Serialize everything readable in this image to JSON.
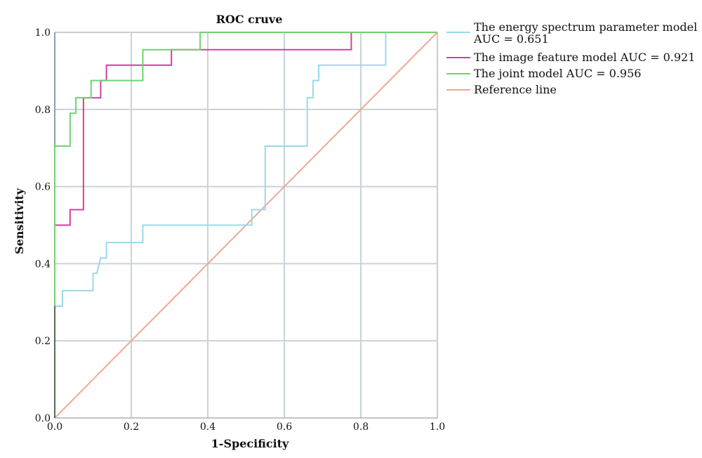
{
  "chart_data": {
    "type": "line",
    "title": "ROC cruve",
    "xlabel": "1-Specificity",
    "ylabel": "Sensitivity",
    "xlim": [
      0,
      1
    ],
    "ylim": [
      0,
      1
    ],
    "x_ticks": [
      "0.0",
      "0.2",
      "0.4",
      "0.6",
      "0.8",
      "1.0"
    ],
    "y_ticks": [
      "0.0",
      "0.2",
      "0.4",
      "0.6",
      "0.8",
      "1.0"
    ],
    "grid": true,
    "legend_position": "right-top",
    "series": [
      {
        "legend_line1": "The energy spectrum parameter model",
        "legend_line2": "AUC = 0.651",
        "color": "#99d8ea",
        "points": [
          [
            0,
            0
          ],
          [
            0,
            0.29
          ],
          [
            0.02,
            0.29
          ],
          [
            0.02,
            0.33
          ],
          [
            0.1,
            0.33
          ],
          [
            0.1,
            0.375
          ],
          [
            0.11,
            0.375
          ],
          [
            0.12,
            0.415
          ],
          [
            0.135,
            0.415
          ],
          [
            0.135,
            0.455
          ],
          [
            0.23,
            0.455
          ],
          [
            0.23,
            0.5
          ],
          [
            0.515,
            0.5
          ],
          [
            0.515,
            0.54
          ],
          [
            0.55,
            0.54
          ],
          [
            0.55,
            0.705
          ],
          [
            0.66,
            0.705
          ],
          [
            0.66,
            0.83
          ],
          [
            0.675,
            0.83
          ],
          [
            0.675,
            0.875
          ],
          [
            0.69,
            0.875
          ],
          [
            0.69,
            0.915
          ],
          [
            0.865,
            0.915
          ],
          [
            0.865,
            1
          ],
          [
            1,
            1
          ]
        ]
      },
      {
        "legend_line1": "The image feature model AUC = 0.921",
        "color": "#d1409a",
        "points": [
          [
            0,
            0
          ],
          [
            0,
            0.5
          ],
          [
            0.04,
            0.5
          ],
          [
            0.04,
            0.54
          ],
          [
            0.075,
            0.54
          ],
          [
            0.075,
            0.83
          ],
          [
            0.1,
            0.83
          ],
          [
            0.12,
            0.83
          ],
          [
            0.12,
            0.875
          ],
          [
            0.135,
            0.875
          ],
          [
            0.135,
            0.915
          ],
          [
            0.305,
            0.915
          ],
          [
            0.305,
            0.955
          ],
          [
            0.775,
            0.955
          ],
          [
            0.775,
            1
          ],
          [
            1,
            1
          ]
        ]
      },
      {
        "legend_line1": "The joint model AUC = 0.956",
        "color": "#6fd26f",
        "points": [
          [
            0,
            0
          ],
          [
            0,
            0.705
          ],
          [
            0.04,
            0.705
          ],
          [
            0.04,
            0.79
          ],
          [
            0.055,
            0.79
          ],
          [
            0.055,
            0.83
          ],
          [
            0.095,
            0.83
          ],
          [
            0.095,
            0.875
          ],
          [
            0.23,
            0.875
          ],
          [
            0.23,
            0.955
          ],
          [
            0.38,
            0.955
          ],
          [
            0.38,
            1
          ],
          [
            1,
            1
          ]
        ]
      },
      {
        "legend_line1": "Reference line",
        "color": "#f0a896",
        "points": [
          [
            0,
            0
          ],
          [
            1,
            1
          ]
        ]
      }
    ]
  }
}
